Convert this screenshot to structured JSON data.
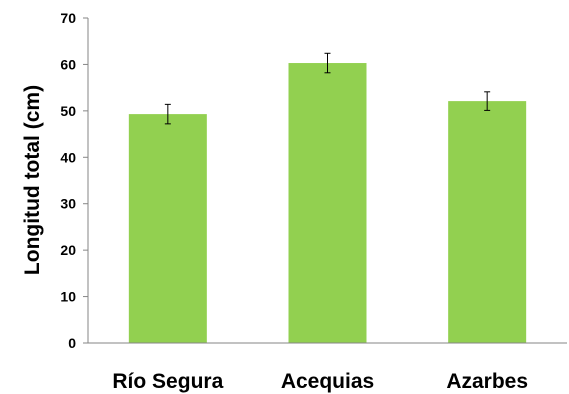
{
  "chart_data": {
    "type": "bar",
    "title": "",
    "xlabel": "",
    "ylabel": "Longitud total (cm)",
    "categories": [
      "Río Segura",
      "Acequias",
      "Azarbes"
    ],
    "values": [
      49.3,
      60.3,
      52.1
    ],
    "errors": [
      2.1,
      2.1,
      2.0
    ],
    "ylim": [
      0,
      70
    ],
    "yticks": [
      0,
      10,
      20,
      30,
      40,
      50,
      60,
      70
    ],
    "grid": false,
    "legend": "none",
    "colors": {
      "bar": "#92d050",
      "error_bar": "#000000",
      "axis": "#868686"
    }
  }
}
